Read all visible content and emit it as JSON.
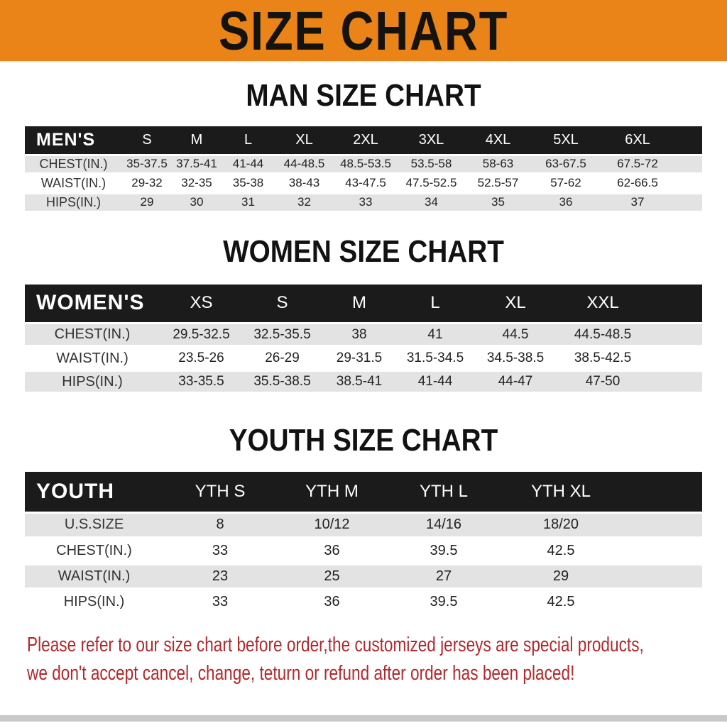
{
  "banner": {
    "title": "SIZE CHART"
  },
  "colors": {
    "banner_bg": "#EA8419",
    "header_bar": "#1B1B1B",
    "stripe": "#E3E3E3",
    "footer_text": "#B2282C"
  },
  "sections": [
    {
      "id": "men",
      "heading": "MAN SIZE CHART",
      "group_label": "MEN'S",
      "size_headers": [
        "S",
        "M",
        "L",
        "XL",
        "2XL",
        "3XL",
        "4XL",
        "5XL",
        "6XL"
      ],
      "rows": [
        {
          "label": "CHEST(IN.)",
          "values": [
            "35-37.5",
            "37.5-41",
            "41-44",
            "44-48.5",
            "48.5-53.5",
            "53.5-58",
            "58-63",
            "63-67.5",
            "67.5-72"
          ]
        },
        {
          "label": "WAIST(IN.)",
          "values": [
            "29-32",
            "32-35",
            "35-38",
            "38-43",
            "43-47.5",
            "47.5-52.5",
            "52.5-57",
            "57-62",
            "62-66.5"
          ]
        },
        {
          "label": "HIPS(IN.)",
          "values": [
            "29",
            "30",
            "31",
            "32",
            "33",
            "34",
            "35",
            "36",
            "37"
          ]
        }
      ]
    },
    {
      "id": "women",
      "heading": "WOMEN SIZE CHART",
      "group_label": "WOMEN'S",
      "size_headers": [
        "XS",
        "S",
        "M",
        "L",
        "XL",
        "XXL"
      ],
      "rows": [
        {
          "label": "CHEST(IN.)",
          "values": [
            "29.5-32.5",
            "32.5-35.5",
            "38",
            "41",
            "44.5",
            "44.5-48.5"
          ]
        },
        {
          "label": "WAIST(IN.)",
          "values": [
            "23.5-26",
            "26-29",
            "29-31.5",
            "31.5-34.5",
            "34.5-38.5",
            "38.5-42.5"
          ]
        },
        {
          "label": "HIPS(IN.)",
          "values": [
            "33-35.5",
            "35.5-38.5",
            "38.5-41",
            "41-44",
            "44-47",
            "47-50"
          ]
        }
      ]
    },
    {
      "id": "youth",
      "heading": "YOUTH SIZE CHART",
      "group_label": "YOUTH",
      "size_headers": [
        "YTH S",
        "YTH M",
        "YTH L",
        "YTH XL"
      ],
      "rows": [
        {
          "label": "U.S.SIZE",
          "values": [
            "8",
            "10/12",
            "14/16",
            "18/20"
          ]
        },
        {
          "label": "CHEST(IN.)",
          "values": [
            "33",
            "36",
            "39.5",
            "42.5"
          ]
        },
        {
          "label": "WAIST(IN.)",
          "values": [
            "23",
            "25",
            "27",
            "29"
          ]
        },
        {
          "label": "HIPS(IN.)",
          "values": [
            "33",
            "36",
            "39.5",
            "42.5"
          ]
        }
      ]
    }
  ],
  "footer": {
    "line1": "Please refer to our size chart before order,the customized jerseys are special products,",
    "line2": "we don't accept cancel, change, teturn or refund after order has been placed!"
  }
}
